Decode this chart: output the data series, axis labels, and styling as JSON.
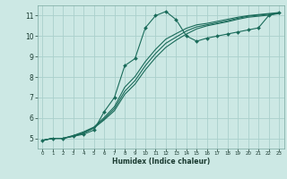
{
  "xlabel": "Humidex (Indice chaleur)",
  "bg_color": "#cce8e4",
  "grid_color": "#aad0cc",
  "line_color": "#1a6b5a",
  "xlim": [
    -0.5,
    23.5
  ],
  "ylim": [
    4.5,
    11.5
  ],
  "xticks": [
    0,
    1,
    2,
    3,
    4,
    5,
    6,
    7,
    8,
    9,
    10,
    11,
    12,
    13,
    14,
    15,
    16,
    17,
    18,
    19,
    20,
    21,
    22,
    23
  ],
  "yticks": [
    5,
    6,
    7,
    8,
    9,
    10,
    11
  ],
  "series1_x": [
    0,
    1,
    2,
    3,
    4,
    5,
    6,
    7,
    8,
    9,
    10,
    11,
    12,
    13,
    14,
    15,
    16,
    17,
    18,
    19,
    20,
    21,
    22,
    23
  ],
  "series1_y": [
    4.9,
    5.0,
    5.0,
    5.1,
    5.2,
    5.4,
    6.3,
    7.0,
    8.55,
    8.9,
    10.4,
    11.0,
    11.2,
    10.8,
    10.0,
    9.75,
    9.9,
    10.0,
    10.1,
    10.2,
    10.3,
    10.4,
    11.0,
    11.15
  ],
  "series2_x": [
    0,
    1,
    2,
    3,
    4,
    5,
    6,
    7,
    8,
    9,
    10,
    11,
    12,
    13,
    14,
    15,
    16,
    17,
    18,
    19,
    20,
    21,
    22,
    23
  ],
  "series2_y": [
    4.9,
    5.0,
    5.0,
    5.1,
    5.25,
    5.5,
    5.9,
    6.35,
    7.15,
    7.65,
    8.35,
    8.95,
    9.45,
    9.8,
    10.1,
    10.35,
    10.5,
    10.6,
    10.7,
    10.82,
    10.92,
    10.97,
    11.02,
    11.1
  ],
  "series3_x": [
    0,
    1,
    2,
    3,
    4,
    5,
    6,
    7,
    8,
    9,
    10,
    11,
    12,
    13,
    14,
    15,
    16,
    17,
    18,
    19,
    20,
    21,
    22,
    23
  ],
  "series3_y": [
    4.9,
    5.0,
    5.0,
    5.12,
    5.28,
    5.52,
    5.95,
    6.45,
    7.3,
    7.82,
    8.55,
    9.15,
    9.65,
    9.95,
    10.25,
    10.45,
    10.55,
    10.65,
    10.75,
    10.87,
    10.97,
    11.02,
    11.07,
    11.12
  ],
  "series4_x": [
    0,
    1,
    2,
    3,
    4,
    5,
    6,
    7,
    8,
    9,
    10,
    11,
    12,
    13,
    14,
    15,
    16,
    17,
    18,
    19,
    20,
    21,
    22,
    23
  ],
  "series4_y": [
    4.9,
    5.0,
    5.0,
    5.14,
    5.32,
    5.55,
    6.02,
    6.55,
    7.5,
    8.02,
    8.75,
    9.35,
    9.85,
    10.12,
    10.38,
    10.55,
    10.62,
    10.72,
    10.82,
    10.92,
    11.0,
    11.05,
    11.1,
    11.15
  ]
}
